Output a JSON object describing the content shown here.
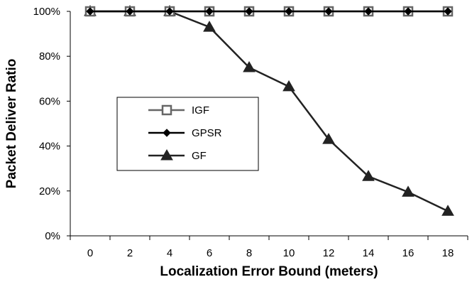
{
  "chart_data": {
    "type": "line",
    "title": "",
    "xlabel": "Localization Error Bound (meters)",
    "ylabel": "Packet Deliver Ratio",
    "x": [
      0,
      2,
      4,
      6,
      8,
      10,
      12,
      14,
      16,
      18
    ],
    "x_tick_labels": [
      "0",
      "2",
      "4",
      "6",
      "8",
      "10",
      "12",
      "14",
      "16",
      "18"
    ],
    "y_tick_labels": [
      "0%",
      "20%",
      "40%",
      "60%",
      "80%",
      "100%"
    ],
    "ylim": [
      0,
      100
    ],
    "y_unit": "%",
    "grid": false,
    "legend_position": "center-left",
    "series": [
      {
        "name": "IGF",
        "marker": "square-hollow",
        "color": "#666666",
        "values": [
          100,
          100,
          100,
          100,
          100,
          100,
          100,
          100,
          100,
          100
        ]
      },
      {
        "name": "GPSR",
        "marker": "diamond-filled",
        "color": "#000000",
        "values": [
          100,
          100,
          100,
          100,
          100,
          100,
          100,
          100,
          100,
          100
        ]
      },
      {
        "name": "GF",
        "marker": "triangle-filled",
        "color": "#222222",
        "values": [
          100,
          100,
          100,
          93,
          75,
          66.5,
          43,
          26.5,
          19.5,
          11
        ]
      }
    ]
  }
}
